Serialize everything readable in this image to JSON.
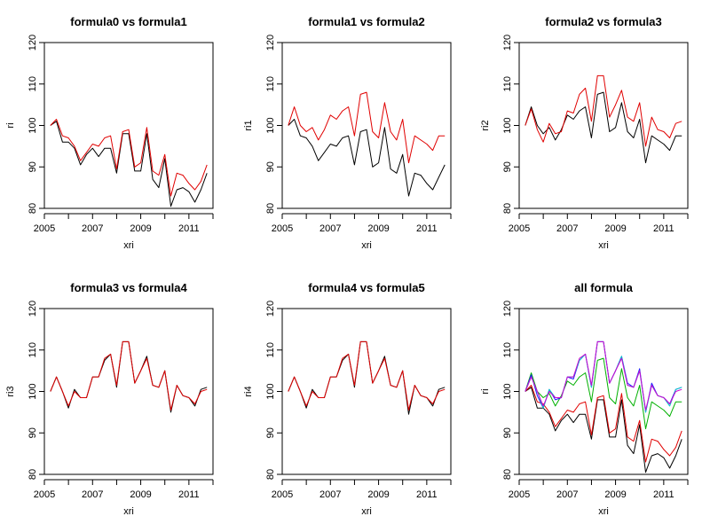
{
  "chart_data": [
    {
      "type": "line",
      "title": "formula0 vs formula1",
      "xlabel": "xri",
      "ylabel": "ri",
      "xlim": [
        2005,
        2012
      ],
      "ylim": [
        80,
        120
      ],
      "xticks": [
        2005,
        2007,
        2009,
        2011
      ],
      "yticks": [
        80,
        90,
        100,
        110,
        120
      ],
      "grid": false,
      "x": [
        2005.25,
        2005.5,
        2005.75,
        2006.0,
        2006.25,
        2006.5,
        2006.75,
        2007.0,
        2007.25,
        2007.5,
        2007.75,
        2008.0,
        2008.25,
        2008.5,
        2008.75,
        2009.0,
        2009.25,
        2009.5,
        2009.75,
        2010.0,
        2010.25,
        2010.5,
        2010.75,
        2011.0,
        2011.25,
        2011.5,
        2011.75
      ],
      "series": [
        {
          "color": "#000000",
          "values": [
            100,
            101,
            96,
            96,
            94.5,
            90.5,
            93,
            94.5,
            92.5,
            94.5,
            94.5,
            88.5,
            98,
            98,
            89,
            89,
            98,
            87,
            85,
            92,
            80.5,
            84.5,
            85,
            84,
            81.5,
            84.5,
            88.5
          ]
        },
        {
          "color": "#e00000",
          "values": [
            100,
            101.5,
            97.5,
            97,
            95,
            91.5,
            93.5,
            95.5,
            95,
            97,
            97.5,
            89.5,
            98.5,
            99,
            90,
            91,
            99.5,
            89,
            88,
            93,
            83,
            88.5,
            88,
            86,
            84.5,
            86.5,
            90.5
          ]
        }
      ]
    },
    {
      "type": "line",
      "title": "formula1 vs formula2",
      "xlabel": "xri",
      "ylabel": "ri1",
      "xlim": [
        2005,
        2012
      ],
      "ylim": [
        80,
        120
      ],
      "xticks": [
        2005,
        2007,
        2009,
        2011
      ],
      "yticks": [
        80,
        90,
        100,
        110,
        120
      ],
      "grid": false,
      "x": [
        2005.25,
        2005.5,
        2005.75,
        2006.0,
        2006.25,
        2006.5,
        2006.75,
        2007.0,
        2007.25,
        2007.5,
        2007.75,
        2008.0,
        2008.25,
        2008.5,
        2008.75,
        2009.0,
        2009.25,
        2009.5,
        2009.75,
        2010.0,
        2010.25,
        2010.5,
        2010.75,
        2011.0,
        2011.25,
        2011.5,
        2011.75
      ],
      "series": [
        {
          "color": "#000000",
          "values": [
            100,
            101.5,
            97.5,
            97,
            95,
            91.5,
            93.5,
            95.5,
            95,
            97,
            97.5,
            90.5,
            98.5,
            99,
            90,
            91,
            99.5,
            89.5,
            88.5,
            93,
            83,
            88.5,
            88,
            86,
            84.5,
            87.5,
            90.5
          ]
        },
        {
          "color": "#e00000",
          "values": [
            100,
            104.5,
            100,
            98.5,
            99.5,
            96.5,
            99,
            102.5,
            101.5,
            103.5,
            104.5,
            97.5,
            107.5,
            108,
            98.5,
            97,
            105.5,
            98.5,
            96.5,
            101.5,
            91,
            97.5,
            96.5,
            95.5,
            94,
            97.5,
            97.5
          ]
        }
      ]
    },
    {
      "type": "line",
      "title": "formula2 vs formula3",
      "xlabel": "xri",
      "ylabel": "ri2",
      "xlim": [
        2005,
        2012
      ],
      "ylim": [
        80,
        120
      ],
      "xticks": [
        2005,
        2007,
        2009,
        2011
      ],
      "yticks": [
        80,
        90,
        100,
        110,
        120
      ],
      "grid": false,
      "x": [
        2005.25,
        2005.5,
        2005.75,
        2006.0,
        2006.25,
        2006.5,
        2006.75,
        2007.0,
        2007.25,
        2007.5,
        2007.75,
        2008.0,
        2008.25,
        2008.5,
        2008.75,
        2009.0,
        2009.25,
        2009.5,
        2009.75,
        2010.0,
        2010.25,
        2010.5,
        2010.75,
        2011.0,
        2011.25,
        2011.5,
        2011.75
      ],
      "series": [
        {
          "color": "#000000",
          "values": [
            100,
            104.5,
            100,
            98,
            99.5,
            96.5,
            99,
            102.5,
            101.5,
            103.5,
            104.5,
            97,
            107.5,
            108,
            98.5,
            99.5,
            105.5,
            98.5,
            97,
            101.5,
            91,
            97.5,
            96.5,
            95.5,
            94,
            97.5,
            97.5
          ]
        },
        {
          "color": "#e00000",
          "values": [
            100,
            104,
            99,
            96,
            100.5,
            98,
            98.5,
            103.5,
            103,
            107.5,
            109,
            101,
            112,
            112,
            102,
            105,
            108.5,
            102,
            101,
            105.5,
            95,
            102,
            99,
            98.5,
            97,
            100.5,
            101
          ]
        }
      ]
    },
    {
      "type": "line",
      "title": "formula3 vs formula4",
      "xlabel": "xri",
      "ylabel": "ri3",
      "xlim": [
        2005,
        2012
      ],
      "ylim": [
        80,
        120
      ],
      "xticks": [
        2005,
        2007,
        2009,
        2011
      ],
      "yticks": [
        80,
        90,
        100,
        110,
        120
      ],
      "grid": false,
      "x": [
        2005.25,
        2005.5,
        2005.75,
        2006.0,
        2006.25,
        2006.5,
        2006.75,
        2007.0,
        2007.25,
        2007.5,
        2007.75,
        2008.0,
        2008.25,
        2008.5,
        2008.75,
        2009.0,
        2009.25,
        2009.5,
        2009.75,
        2010.0,
        2010.25,
        2010.5,
        2010.75,
        2011.0,
        2011.25,
        2011.5,
        2011.75
      ],
      "series": [
        {
          "color": "#000000",
          "values": [
            100,
            103.5,
            100,
            96,
            100.5,
            98.5,
            98.5,
            103.5,
            103.5,
            107.5,
            109,
            101,
            112,
            112,
            102,
            105,
            108.5,
            101.5,
            101,
            105,
            95,
            101.5,
            99,
            98.5,
            96.5,
            100.5,
            101
          ]
        },
        {
          "color": "#e00000",
          "values": [
            100,
            103.5,
            100,
            96.5,
            100,
            98.5,
            98.5,
            103.5,
            103.5,
            108,
            109,
            101.5,
            112,
            112,
            102,
            105,
            108,
            101.5,
            101,
            105,
            95.5,
            101.5,
            99,
            98.5,
            97,
            100,
            100.5
          ]
        }
      ]
    },
    {
      "type": "line",
      "title": "formula4 vs formula5",
      "xlabel": "xri",
      "ylabel": "ri4",
      "xlim": [
        2005,
        2012
      ],
      "ylim": [
        80,
        120
      ],
      "xticks": [
        2005,
        2007,
        2009,
        2011
      ],
      "yticks": [
        80,
        90,
        100,
        110,
        120
      ],
      "grid": false,
      "x": [
        2005.25,
        2005.5,
        2005.75,
        2006.0,
        2006.25,
        2006.5,
        2006.75,
        2007.0,
        2007.25,
        2007.5,
        2007.75,
        2008.0,
        2008.25,
        2008.5,
        2008.75,
        2009.0,
        2009.25,
        2009.5,
        2009.75,
        2010.0,
        2010.25,
        2010.5,
        2010.75,
        2011.0,
        2011.25,
        2011.5,
        2011.75
      ],
      "series": [
        {
          "color": "#000000",
          "values": [
            100,
            103.5,
            100,
            96,
            100.5,
            98.5,
            98.5,
            103.5,
            103.5,
            107.5,
            109,
            101,
            112,
            112,
            102,
            105,
            108.5,
            101.5,
            101,
            105,
            94.5,
            101.5,
            99,
            98.5,
            96.5,
            100.5,
            101
          ]
        },
        {
          "color": "#e00000",
          "values": [
            100,
            103.5,
            100,
            96.5,
            100,
            98.5,
            98.5,
            103.5,
            103.5,
            108,
            109,
            101.5,
            112,
            112,
            102,
            105,
            108,
            101.5,
            101,
            105,
            95.5,
            101.5,
            99,
            98.5,
            97,
            100,
            100.5
          ]
        }
      ]
    },
    {
      "type": "line",
      "title": "all formula",
      "xlabel": "xri",
      "ylabel": "ri",
      "xlim": [
        2005,
        2012
      ],
      "ylim": [
        80,
        120
      ],
      "xticks": [
        2005,
        2007,
        2009,
        2011
      ],
      "yticks": [
        80,
        90,
        100,
        110,
        120
      ],
      "grid": false,
      "x": [
        2005.25,
        2005.5,
        2005.75,
        2006.0,
        2006.25,
        2006.5,
        2006.75,
        2007.0,
        2007.25,
        2007.5,
        2007.75,
        2008.0,
        2008.25,
        2008.5,
        2008.75,
        2009.0,
        2009.25,
        2009.5,
        2009.75,
        2010.0,
        2010.25,
        2010.5,
        2010.75,
        2011.0,
        2011.25,
        2011.5,
        2011.75
      ],
      "series": [
        {
          "color": "#000000",
          "values": [
            100,
            101,
            96,
            96,
            94.5,
            90.5,
            93,
            94.5,
            92.5,
            94.5,
            94.5,
            88.5,
            98,
            98,
            89,
            89,
            98,
            87,
            85,
            92,
            80.5,
            84.5,
            85,
            84,
            81.5,
            84.5,
            88.5
          ]
        },
        {
          "color": "#e00000",
          "values": [
            100,
            101.5,
            97.5,
            97,
            95,
            91.5,
            93.5,
            95.5,
            95,
            97,
            97.5,
            89.5,
            98.5,
            99,
            90,
            91,
            99.5,
            89,
            88,
            93,
            83,
            88.5,
            88,
            86,
            84.5,
            86.5,
            90.5
          ]
        },
        {
          "color": "#00b000",
          "values": [
            100,
            104.5,
            100,
            98.5,
            99.5,
            96.5,
            99,
            102.5,
            101.5,
            103.5,
            104.5,
            97.5,
            107.5,
            108,
            98.5,
            97,
            105.5,
            98.5,
            96.5,
            101.5,
            91,
            97.5,
            96.5,
            95.5,
            94,
            97.5,
            97.5
          ]
        },
        {
          "color": "#2020ff",
          "values": [
            100,
            104,
            99,
            96,
            100.5,
            98,
            98.5,
            103.5,
            103,
            107.5,
            109,
            101,
            112,
            112,
            102,
            105,
            108.5,
            102,
            101,
            105.5,
            95,
            102,
            99,
            98.5,
            97,
            100.5,
            101
          ]
        },
        {
          "color": "#00c8c8",
          "values": [
            100,
            103.5,
            100,
            96,
            100.5,
            98.5,
            98.5,
            103.5,
            103.5,
            107.5,
            109,
            101,
            112,
            112,
            102,
            105,
            108.5,
            101.5,
            101,
            105,
            95,
            101.5,
            99,
            98.5,
            96.5,
            100.5,
            101
          ]
        },
        {
          "color": "#d000d0",
          "values": [
            100,
            103.5,
            100,
            96.5,
            100,
            98.5,
            98.5,
            103.5,
            103.5,
            108,
            109,
            101.5,
            112,
            112,
            102,
            105,
            108,
            101.5,
            101,
            105,
            95.5,
            101.5,
            99,
            98.5,
            97,
            100,
            100.5
          ]
        }
      ]
    }
  ]
}
